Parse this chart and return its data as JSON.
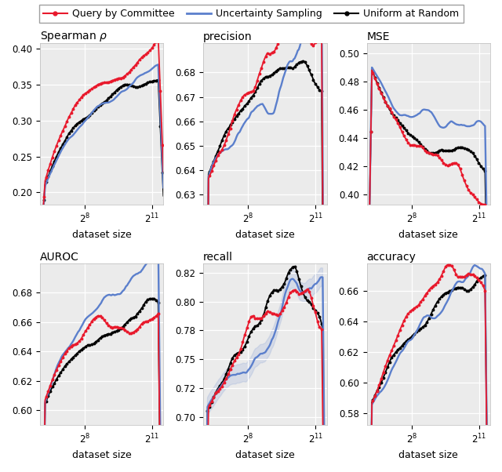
{
  "legend_labels": [
    "Query by Committee",
    "Uncertainty Sampling",
    "Uniform at Random"
  ],
  "legend_colors": [
    "#e8192c",
    "#5b7fcc",
    "#000000"
  ],
  "subplots": [
    {
      "title": "Spearman $\\rho$",
      "yticks": [
        0.2,
        0.25,
        0.3,
        0.35,
        0.4
      ],
      "ylim": [
        0.183,
        0.408
      ],
      "metric": "spearman"
    },
    {
      "title": "precision",
      "yticks": [
        0.63,
        0.64,
        0.65,
        0.66,
        0.67,
        0.68
      ],
      "ylim": [
        0.626,
        0.692
      ],
      "metric": "precision"
    },
    {
      "title": "MSE",
      "yticks": [
        0.4,
        0.42,
        0.44,
        0.46,
        0.48,
        0.5
      ],
      "ylim": [
        0.393,
        0.507
      ],
      "metric": "mse"
    },
    {
      "title": "AUROC",
      "yticks": [
        0.6,
        0.62,
        0.64,
        0.66,
        0.68
      ],
      "ylim": [
        0.59,
        0.7
      ],
      "metric": "auroc"
    },
    {
      "title": "recall",
      "yticks": [
        0.7,
        0.725,
        0.75,
        0.775,
        0.8,
        0.825
      ],
      "ylim": [
        0.693,
        0.833
      ],
      "metric": "recall"
    },
    {
      "title": "accuracy",
      "yticks": [
        0.58,
        0.6,
        0.62,
        0.64,
        0.66
      ],
      "ylim": [
        0.572,
        0.678
      ],
      "metric": "accuracy"
    }
  ],
  "xlabel": "dataset size",
  "x_tick_positions": [
    256,
    2048
  ],
  "x_tick_labels": [
    "$2^{8}$",
    "$2^{11}$"
  ],
  "xlim_log2": [
    6.0,
    11.5
  ],
  "n_points": 120,
  "bg_color": "#ebebeb"
}
